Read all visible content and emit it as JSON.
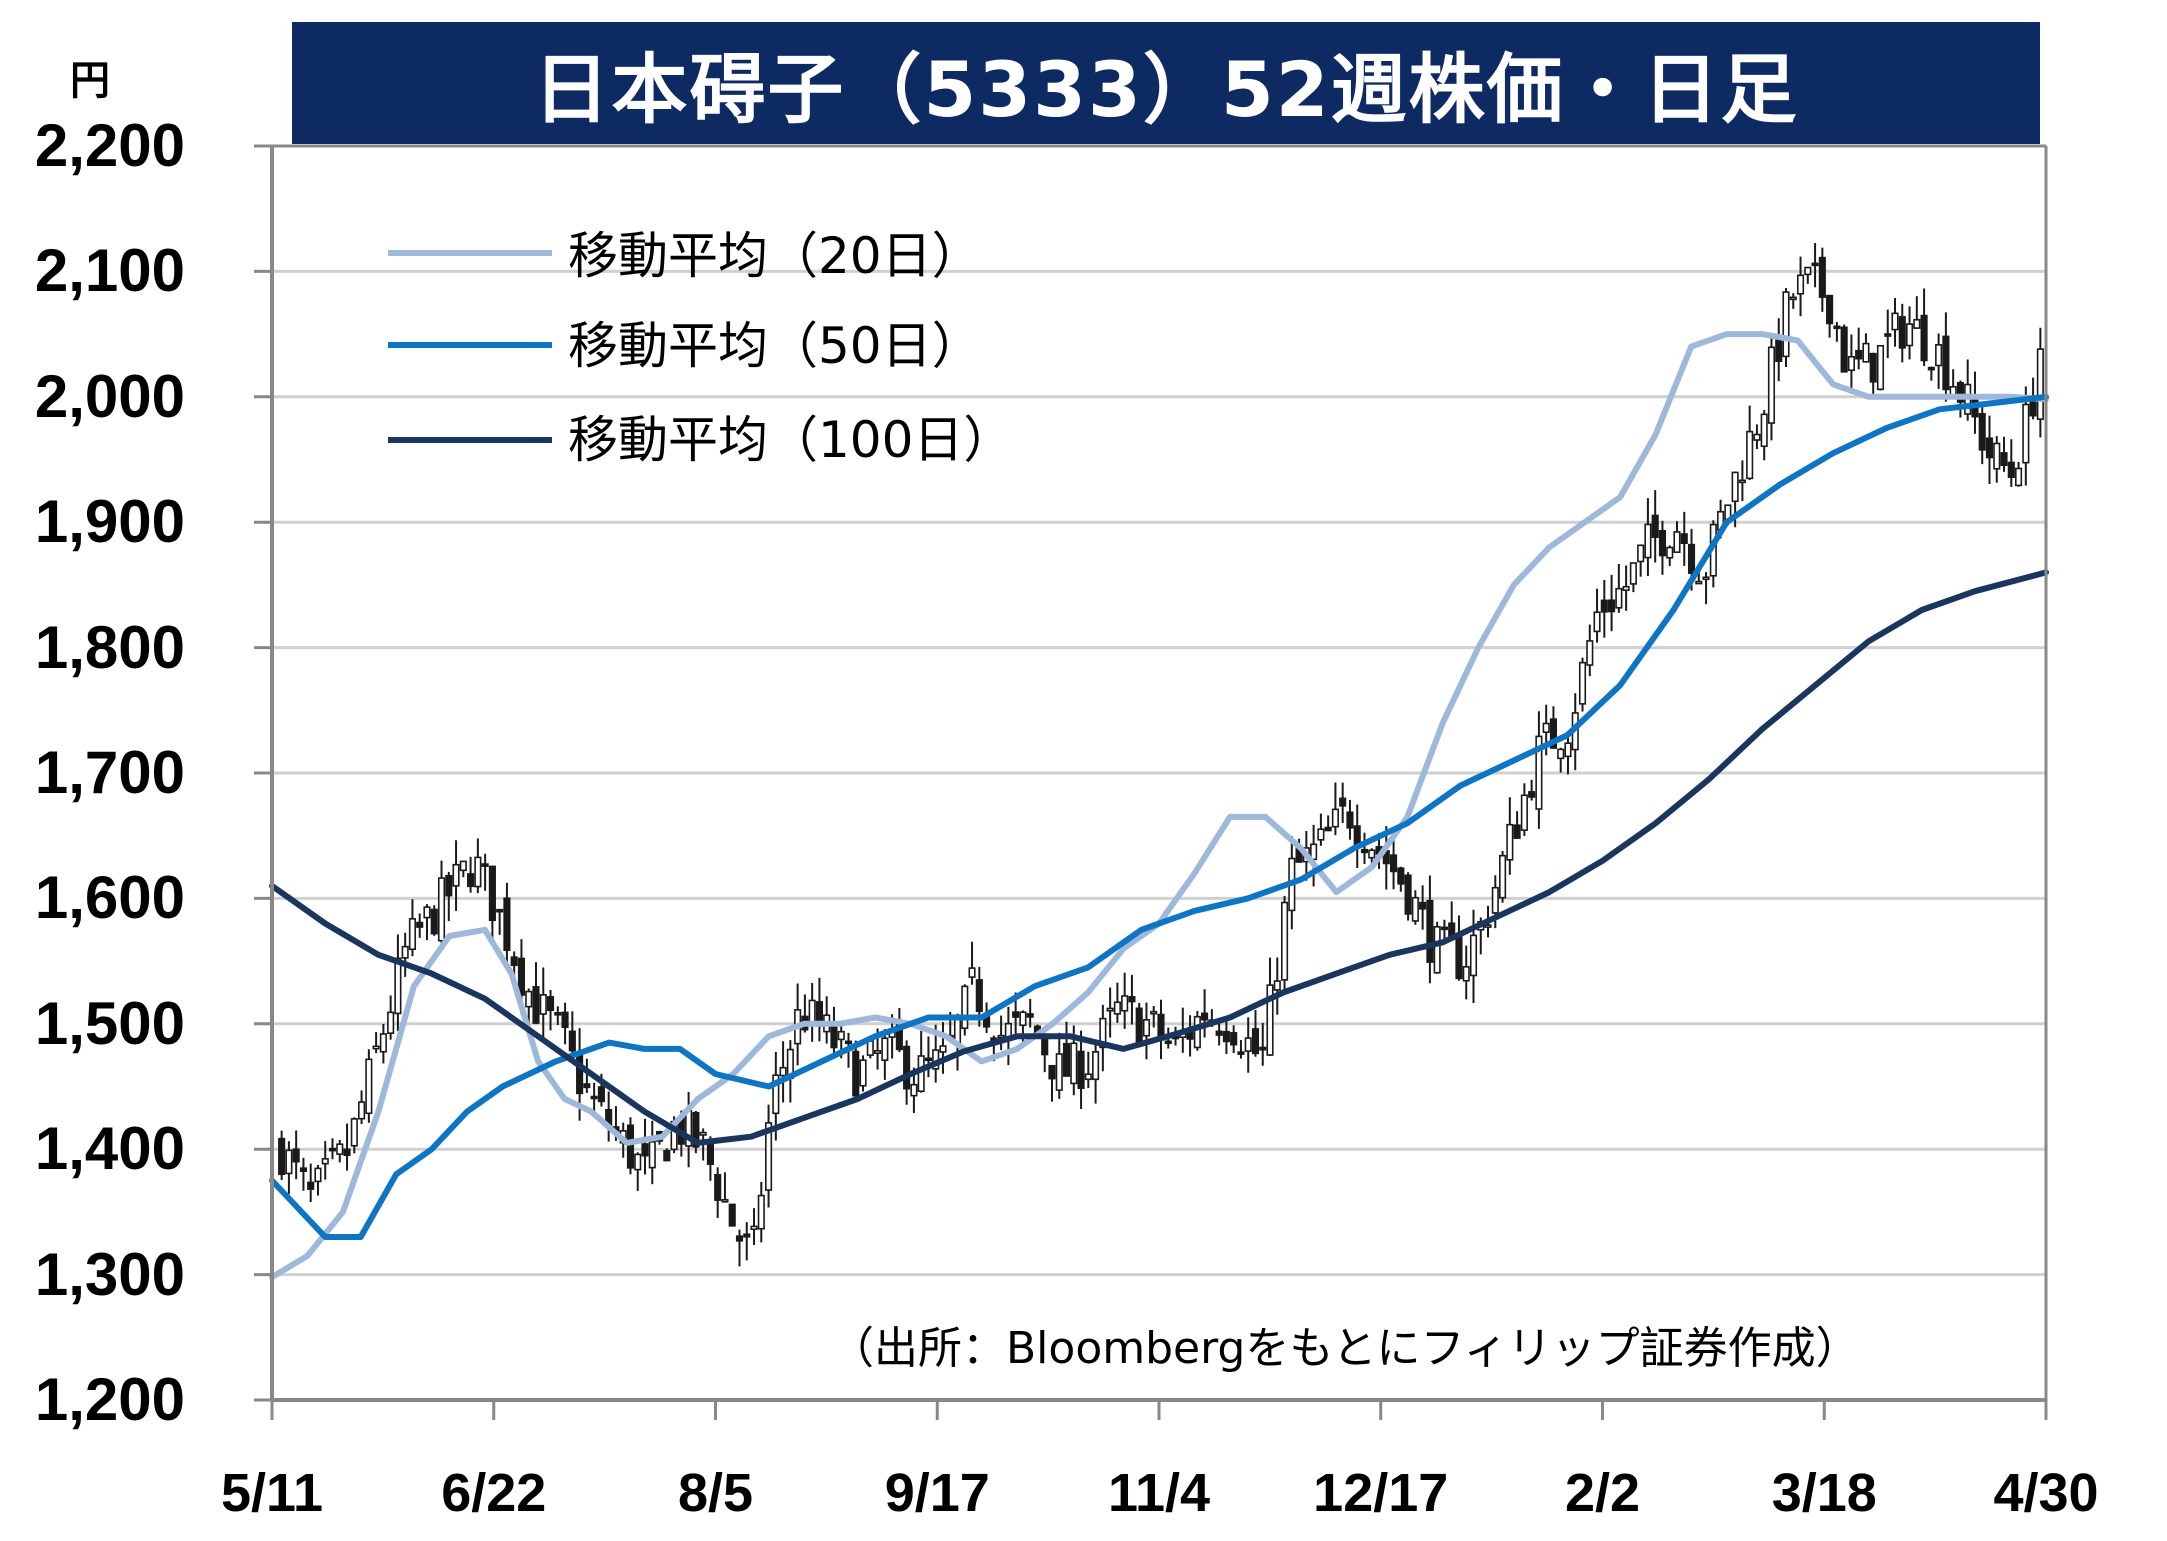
{
  "title": "日本碍子（5333）52週株価・日足",
  "unit_label": "円",
  "source_note": "（出所：Bloombergをもとにフィリップ証券作成）",
  "colors": {
    "title_bg": "#0e2a63",
    "title_text": "#ffffff",
    "ma20": "#9db8da",
    "ma50": "#0e74c4",
    "ma100": "#1a355e",
    "candle": "#1a1a1a",
    "grid": "#d0d0d0",
    "axis": "#888888"
  },
  "legend": [
    {
      "label": "移動平均（20日）",
      "color": "#9db8da"
    },
    {
      "label": "移動平均（50日）",
      "color": "#0e74c4"
    },
    {
      "label": "移動平均（100日）",
      "color": "#1a355e"
    }
  ],
  "chart_data": {
    "type": "candlestick",
    "title": "日本碍子（5333）52週株価・日足",
    "ylabel": "円",
    "ylim": [
      1200,
      2200
    ],
    "yticks": [
      "1,200",
      "1,300",
      "1,400",
      "1,500",
      "1,600",
      "1,700",
      "1,800",
      "1,900",
      "2,000",
      "2,100",
      "2,200"
    ],
    "xticks": [
      "5/11",
      "6/22",
      "8/5",
      "9/17",
      "11/4",
      "12/17",
      "2/2",
      "3/18",
      "4/30"
    ],
    "grid": true,
    "legend_position": "top-left",
    "n_days": 243,
    "close_anchors": [
      [
        0,
        1400
      ],
      [
        6,
        1360
      ],
      [
        14,
        1400
      ],
      [
        20,
        1480
      ],
      [
        26,
        1560
      ],
      [
        34,
        1600
      ],
      [
        40,
        1630
      ],
      [
        46,
        1580
      ],
      [
        52,
        1520
      ],
      [
        58,
        1490
      ],
      [
        64,
        1440
      ],
      [
        70,
        1410
      ],
      [
        76,
        1380
      ],
      [
        82,
        1420
      ],
      [
        88,
        1400
      ],
      [
        94,
        1340
      ],
      [
        98,
        1310
      ],
      [
        102,
        1440
      ],
      [
        108,
        1510
      ],
      [
        114,
        1490
      ],
      [
        120,
        1460
      ],
      [
        126,
        1480
      ],
      [
        132,
        1460
      ],
      [
        138,
        1470
      ],
      [
        144,
        1530
      ],
      [
        150,
        1490
      ],
      [
        156,
        1500
      ],
      [
        162,
        1460
      ],
      [
        168,
        1470
      ],
      [
        174,
        1510
      ],
      [
        180,
        1500
      ],
      [
        186,
        1480
      ],
      [
        192,
        1510
      ],
      [
        198,
        1500
      ],
      [
        204,
        1470
      ],
      [
        210,
        1620
      ],
      [
        216,
        1640
      ],
      [
        222,
        1670
      ],
      [
        228,
        1640
      ],
      [
        234,
        1610
      ],
      [
        240,
        1560
      ],
      [
        246,
        1550
      ],
      [
        250,
        1580
      ],
      [
        256,
        1650
      ],
      [
        262,
        1720
      ],
      [
        268,
        1740
      ],
      [
        274,
        1830
      ],
      [
        280,
        1850
      ],
      [
        284,
        1880
      ],
      [
        290,
        1900
      ],
      [
        296,
        1860
      ],
      [
        302,
        1930
      ],
      [
        308,
        1990
      ],
      [
        314,
        2080
      ],
      [
        318,
        2090
      ],
      [
        322,
        2080
      ],
      [
        326,
        2020
      ],
      [
        332,
        2030
      ],
      [
        338,
        2060
      ],
      [
        344,
        2040
      ],
      [
        350,
        2000
      ],
      [
        356,
        1950
      ],
      [
        360,
        1940
      ],
      [
        364,
        1990
      ],
      [
        366,
        2040
      ]
    ],
    "series": [
      {
        "name": "移動平均（20日）",
        "x": [
          0,
          0.02,
          0.04,
          0.06,
          0.08,
          0.1,
          0.12,
          0.135,
          0.15,
          0.165,
          0.18,
          0.2,
          0.22,
          0.24,
          0.26,
          0.28,
          0.3,
          0.32,
          0.34,
          0.36,
          0.38,
          0.4,
          0.42,
          0.44,
          0.46,
          0.48,
          0.5,
          0.52,
          0.54,
          0.56,
          0.58,
          0.6,
          0.62,
          0.64,
          0.66,
          0.68,
          0.7,
          0.72,
          0.74,
          0.76,
          0.78,
          0.8,
          0.82,
          0.84,
          0.86,
          0.88,
          0.9,
          0.92,
          0.94,
          0.96,
          0.98,
          1.0
        ],
        "values": [
          1298,
          1315,
          1350,
          1430,
          1530,
          1570,
          1575,
          1540,
          1470,
          1440,
          1430,
          1405,
          1410,
          1440,
          1460,
          1490,
          1500,
          1500,
          1505,
          1500,
          1490,
          1470,
          1480,
          1500,
          1525,
          1560,
          1580,
          1620,
          1665,
          1665,
          1640,
          1605,
          1625,
          1665,
          1740,
          1800,
          1850,
          1880,
          1900,
          1920,
          1970,
          2040,
          2050,
          2050,
          2045,
          2010,
          2000,
          2000,
          2000,
          2000,
          2000,
          1998
        ]
      },
      {
        "name": "移動平均（50日）",
        "x": [
          0,
          0.03,
          0.05,
          0.07,
          0.09,
          0.11,
          0.13,
          0.16,
          0.19,
          0.21,
          0.23,
          0.25,
          0.28,
          0.31,
          0.34,
          0.37,
          0.4,
          0.43,
          0.46,
          0.49,
          0.52,
          0.55,
          0.58,
          0.61,
          0.64,
          0.67,
          0.7,
          0.73,
          0.76,
          0.79,
          0.82,
          0.85,
          0.88,
          0.91,
          0.94,
          0.97,
          1.0
        ],
        "values": [
          1375,
          1330,
          1330,
          1380,
          1400,
          1430,
          1450,
          1470,
          1485,
          1480,
          1480,
          1460,
          1450,
          1470,
          1490,
          1505,
          1505,
          1530,
          1545,
          1575,
          1590,
          1600,
          1615,
          1640,
          1660,
          1690,
          1710,
          1730,
          1770,
          1830,
          1900,
          1930,
          1955,
          1975,
          1990,
          1995,
          2000
        ]
      },
      {
        "name": "移動平均（100日）",
        "x": [
          0,
          0.03,
          0.06,
          0.09,
          0.12,
          0.15,
          0.18,
          0.21,
          0.24,
          0.27,
          0.3,
          0.33,
          0.36,
          0.39,
          0.42,
          0.45,
          0.48,
          0.51,
          0.54,
          0.57,
          0.6,
          0.63,
          0.66,
          0.69,
          0.72,
          0.75,
          0.78,
          0.81,
          0.84,
          0.87,
          0.9,
          0.93,
          0.96,
          1.0
        ],
        "values": [
          1610,
          1580,
          1555,
          1540,
          1520,
          1490,
          1460,
          1430,
          1405,
          1410,
          1425,
          1440,
          1460,
          1478,
          1490,
          1490,
          1480,
          1492,
          1505,
          1525,
          1540,
          1555,
          1565,
          1585,
          1605,
          1630,
          1660,
          1695,
          1735,
          1770,
          1805,
          1830,
          1845,
          1860
        ]
      }
    ]
  }
}
